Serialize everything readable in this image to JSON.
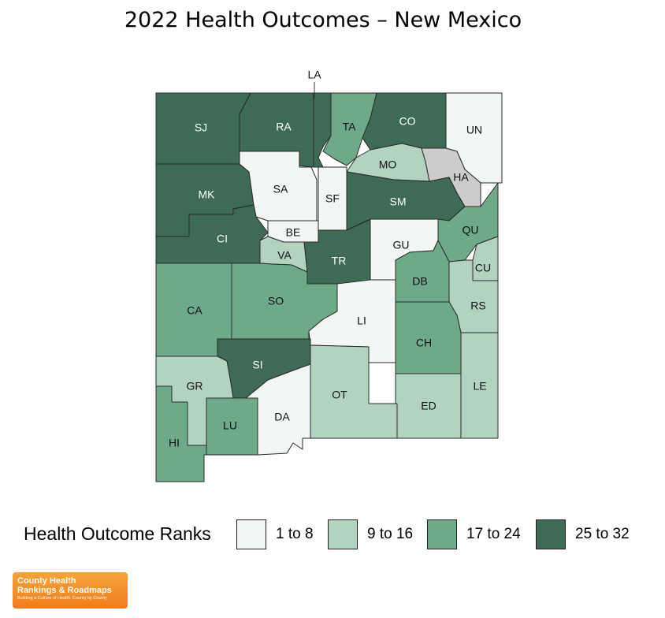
{
  "title": "2022 Health Outcomes – New Mexico",
  "legend": {
    "title": "Health Outcome Ranks",
    "items": [
      {
        "key": "r1",
        "label": "1 to 8",
        "color": "#f2f6f4"
      },
      {
        "key": "r2",
        "label": "9 to 16",
        "color": "#b3d3c1"
      },
      {
        "key": "r3",
        "label": "17 to 24",
        "color": "#6ea98a"
      },
      {
        "key": "r4",
        "label": "25 to 32",
        "color": "#3d6b56"
      }
    ],
    "no_data_color": "#cccccc"
  },
  "counties": [
    {
      "abbr": "SJ",
      "rank_group": "r4"
    },
    {
      "abbr": "RA",
      "rank_group": "r4"
    },
    {
      "abbr": "LA",
      "rank_group": "r4"
    },
    {
      "abbr": "TA",
      "rank_group": "r3"
    },
    {
      "abbr": "CO",
      "rank_group": "r4"
    },
    {
      "abbr": "UN",
      "rank_group": "r1"
    },
    {
      "abbr": "MO",
      "rank_group": "r2"
    },
    {
      "abbr": "HA",
      "rank_group": "none"
    },
    {
      "abbr": "MK",
      "rank_group": "r4"
    },
    {
      "abbr": "SA",
      "rank_group": "r1"
    },
    {
      "abbr": "SF",
      "rank_group": "r1"
    },
    {
      "abbr": "SM",
      "rank_group": "r4"
    },
    {
      "abbr": "CI",
      "rank_group": "r4"
    },
    {
      "abbr": "BE",
      "rank_group": "r1"
    },
    {
      "abbr": "VA",
      "rank_group": "r2"
    },
    {
      "abbr": "TR",
      "rank_group": "r4"
    },
    {
      "abbr": "GU",
      "rank_group": "r1"
    },
    {
      "abbr": "QU",
      "rank_group": "r3"
    },
    {
      "abbr": "CU",
      "rank_group": "r2"
    },
    {
      "abbr": "DB",
      "rank_group": "r3"
    },
    {
      "abbr": "RS",
      "rank_group": "r2"
    },
    {
      "abbr": "CA",
      "rank_group": "r3"
    },
    {
      "abbr": "SO",
      "rank_group": "r3"
    },
    {
      "abbr": "LI",
      "rank_group": "r1"
    },
    {
      "abbr": "CH",
      "rank_group": "r3"
    },
    {
      "abbr": "SI",
      "rank_group": "r4"
    },
    {
      "abbr": "GR",
      "rank_group": "r2"
    },
    {
      "abbr": "OT",
      "rank_group": "r2"
    },
    {
      "abbr": "ED",
      "rank_group": "r2"
    },
    {
      "abbr": "LE",
      "rank_group": "r2"
    },
    {
      "abbr": "DA",
      "rank_group": "r1"
    },
    {
      "abbr": "LU",
      "rank_group": "r3"
    },
    {
      "abbr": "HI",
      "rank_group": "r3"
    }
  ],
  "logo": {
    "line1": "County Health",
    "line2": "Rankings & Roadmaps",
    "tagline": "Building a Culture of Health, County by County"
  }
}
